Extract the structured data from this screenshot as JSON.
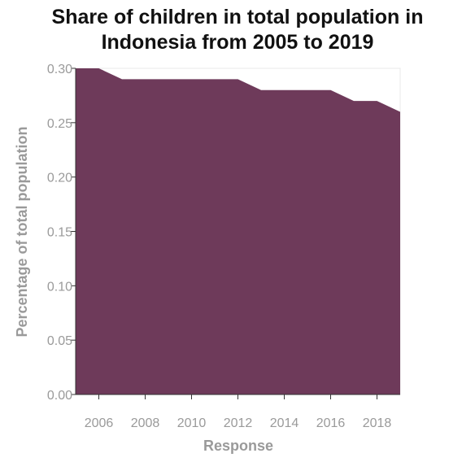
{
  "chart_data": {
    "type": "area",
    "title_lines": [
      "Share of children in total population in",
      "Indonesia from 2005 to 2019"
    ],
    "xlabel": "Response",
    "ylabel": "Percentage of total population",
    "x": [
      2005,
      2006,
      2007,
      2008,
      2009,
      2010,
      2011,
      2012,
      2013,
      2014,
      2015,
      2016,
      2017,
      2018,
      2019
    ],
    "values": [
      0.3,
      0.3,
      0.29,
      0.29,
      0.29,
      0.29,
      0.29,
      0.29,
      0.28,
      0.28,
      0.28,
      0.28,
      0.27,
      0.27,
      0.26
    ],
    "xlim": [
      2005,
      2019
    ],
    "ylim": [
      0,
      0.3
    ],
    "x_ticks": [
      2006,
      2008,
      2010,
      2012,
      2014,
      2016,
      2018
    ],
    "x_tick_labels": [
      "2006",
      "2008",
      "2010",
      "2012",
      "2014",
      "2016",
      "2018"
    ],
    "y_ticks": [
      0,
      0.05,
      0.1,
      0.15,
      0.2,
      0.25,
      0.3
    ],
    "y_tick_labels": [
      "0.00",
      "0.05",
      "0.10",
      "0.15",
      "0.20",
      "0.25",
      "0.30"
    ],
    "grid": false,
    "color": "#6e3a5a"
  }
}
